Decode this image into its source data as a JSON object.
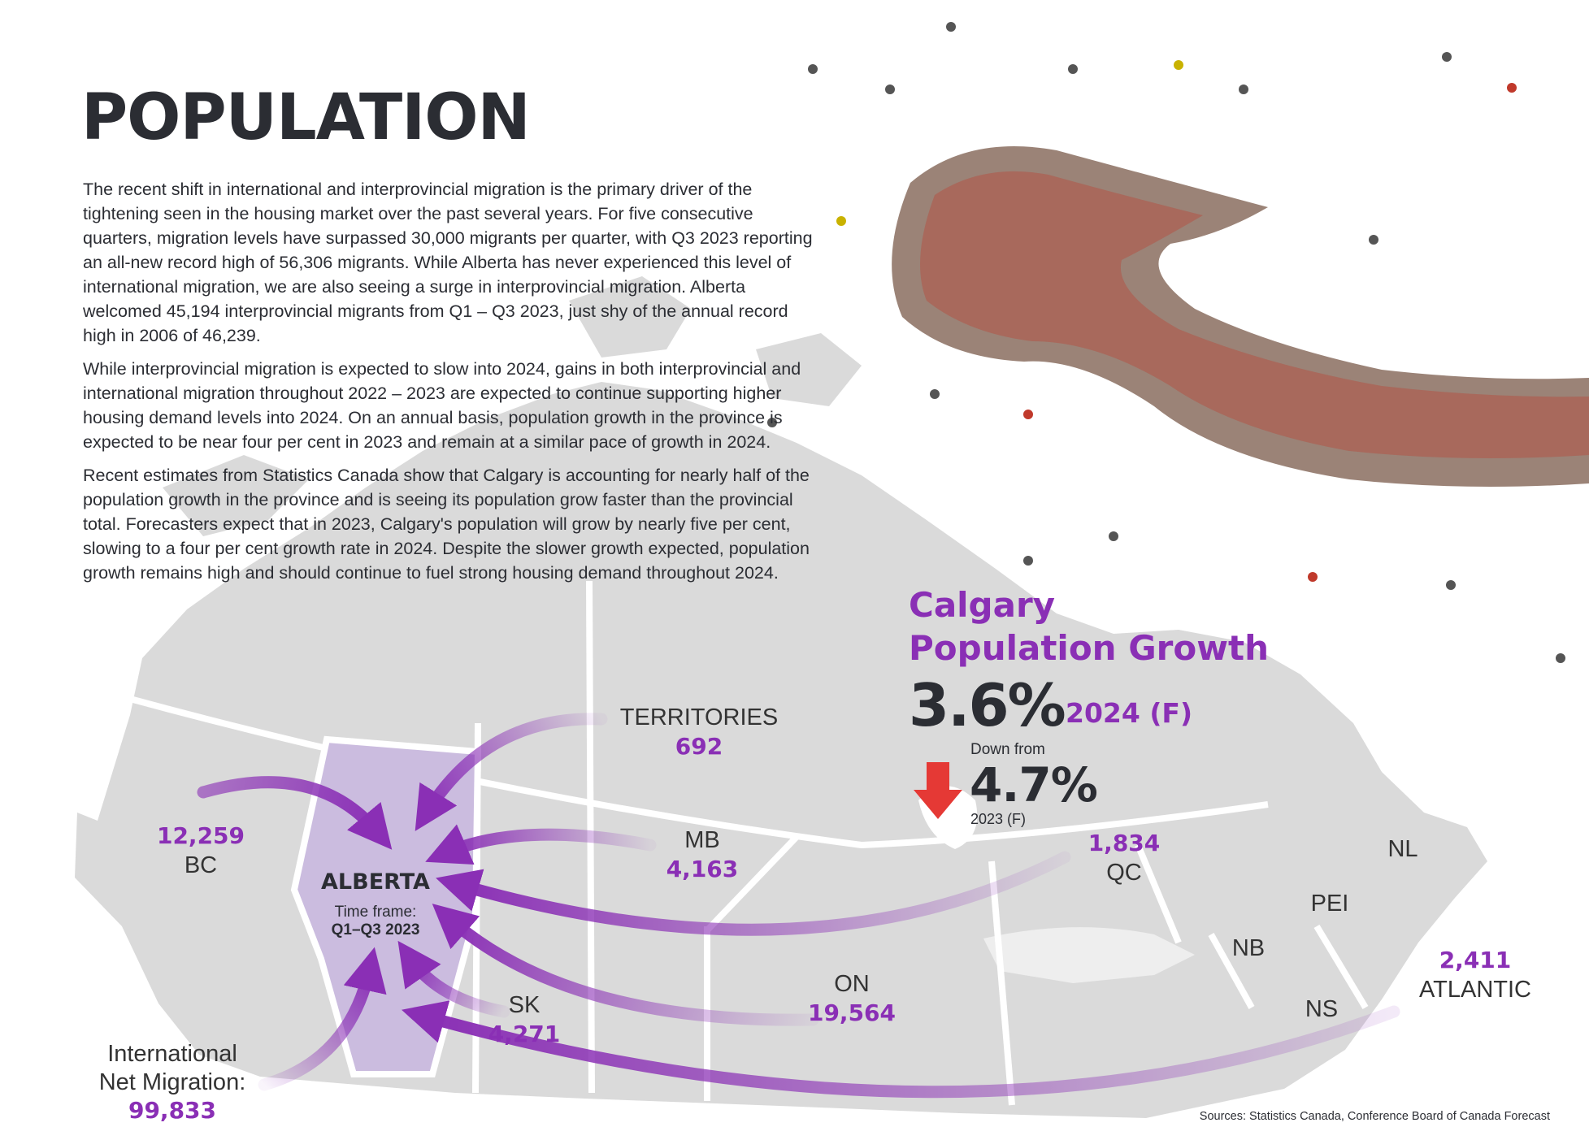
{
  "page_title": "POPULATION",
  "paragraphs": [
    "The recent shift in international and interprovincial migration is the primary driver of the tightening seen in the housing market over the past several years. For five consecutive quarters, migration levels have surpassed 30,000 migrants per quarter, with Q3 2023 reporting an all-new record high of 56,306 migrants. While Alberta has never experienced this level of international migration, we are also seeing a surge in interprovincial migration. Alberta welcomed 45,194 interprovincial migrants from Q1 – Q3 2023, just shy of the annual record high in 2006 of 46,239.",
    "While interprovincial migration is expected to slow into 2024, gains in both interprovincial and international migration throughout 2022 – 2023 are expected to continue supporting higher housing demand levels into 2024. On an annual basis, population growth in the province is expected to be near four per cent in 2023 and remain at a similar pace of growth in 2024.",
    "Recent estimates from Statistics Canada show that Calgary is accounting for nearly half of the population growth in the province and is seeing its population grow faster than the provincial total. Forecasters expect that in 2023, Calgary's population will grow by nearly five per cent, slowing to a four per cent growth rate in 2024. Despite the slower growth expected, population growth remains high and should continue to fuel strong housing demand throughout 2024."
  ],
  "calgary": {
    "title_line1": "Calgary",
    "title_line2": "Population Growth",
    "current_value": "3.6%",
    "current_year": "2024 (F)",
    "down_label": "Down from",
    "previous_value": "4.7%",
    "previous_year": "2023 (F)"
  },
  "map": {
    "destination": "ALBERTA",
    "timeframe_label": "Time frame:",
    "timeframe_value": "Q1–Q3 2023",
    "international_label_line1": "International",
    "international_label_line2": "Net Migration:",
    "international_value": "99,833",
    "regions": {
      "bc": {
        "label": "BC",
        "value": "12,259"
      },
      "territories": {
        "label": "TERRITORIES",
        "value": "692"
      },
      "mb": {
        "label": "MB",
        "value": "4,163"
      },
      "sk": {
        "label": "SK",
        "value": "4,271"
      },
      "on": {
        "label": "ON",
        "value": "19,564"
      },
      "qc": {
        "label": "QC",
        "value": "1,834"
      },
      "atlantic": {
        "label": "ATLANTIC",
        "value": "2,411"
      },
      "nl": {
        "label": "NL"
      },
      "pei": {
        "label": "PEI"
      },
      "nb": {
        "label": "NB"
      },
      "ns": {
        "label": "NS"
      }
    }
  },
  "sources": "Sources: Statistics Canada, Conference Board of Canada Forecast",
  "colors": {
    "accent_purple": "#8a2fb5",
    "dark_text": "#2b2d33",
    "arrow_red": "#e53935",
    "map_gray": "#dcdcdc",
    "alberta_fill": "#c9b8df"
  }
}
